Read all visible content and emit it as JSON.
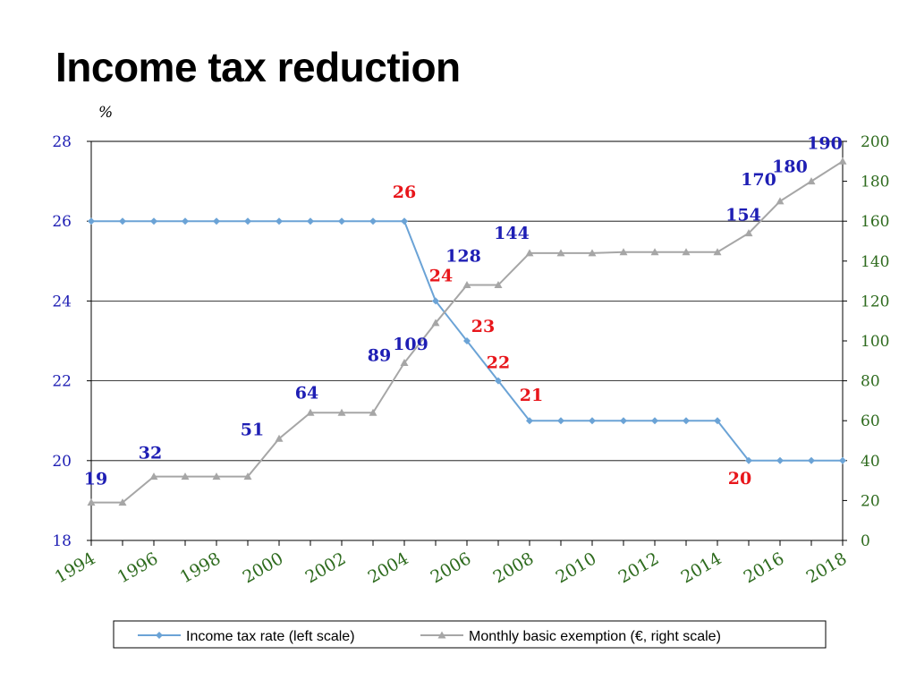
{
  "page": {
    "title": "Income tax reduction"
  },
  "chart_data": {
    "type": "line",
    "title": "Income tax reduction",
    "left_axis_label": "%",
    "x": [
      1994,
      1995,
      1996,
      1997,
      1998,
      1999,
      2000,
      2001,
      2002,
      2003,
      2004,
      2005,
      2006,
      2007,
      2008,
      2009,
      2010,
      2011,
      2012,
      2013,
      2014,
      2015,
      2016,
      2017,
      2018
    ],
    "x_tick_labels": [
      "1994",
      "1996",
      "1998",
      "2000",
      "2002",
      "2004",
      "2006",
      "2008",
      "2010",
      "2012",
      "2014",
      "2016",
      "2018"
    ],
    "left_axis": {
      "ylim": [
        18,
        28
      ],
      "ticks": [
        "18",
        "20",
        "22",
        "24",
        "26",
        "28"
      ],
      "gridlines": [
        20,
        22,
        24,
        26
      ]
    },
    "right_axis": {
      "ylim": [
        0,
        200
      ],
      "ticks": [
        "0",
        "20",
        "40",
        "60",
        "80",
        "100",
        "120",
        "140",
        "160",
        "180",
        "200"
      ]
    },
    "series": [
      {
        "name": "Income tax rate (left scale)",
        "axis": "left",
        "color": "#6BA3D6",
        "marker": "diamond",
        "values": [
          26,
          26,
          26,
          26,
          26,
          26,
          26,
          26,
          26,
          26,
          26,
          24,
          23,
          22,
          21,
          21,
          21,
          21,
          21,
          21,
          21,
          20,
          20,
          20,
          20
        ],
        "data_labels": [
          {
            "x": 2004,
            "text": "26"
          },
          {
            "x": 2005,
            "text": "24"
          },
          {
            "x": 2006,
            "text": "23"
          },
          {
            "x": 2007,
            "text": "22"
          },
          {
            "x": 2008,
            "text": "21"
          },
          {
            "x": 2015,
            "text": "20"
          }
        ],
        "label_color": "#E8161B"
      },
      {
        "name": "Monthly basic exemption (€, right scale)",
        "axis": "right",
        "color": "#A6A6A6",
        "marker": "triangle",
        "values": [
          19,
          19,
          32,
          32,
          32,
          32,
          51,
          64,
          64,
          64,
          89,
          109,
          128,
          128,
          144,
          144,
          144,
          144.5,
          144.5,
          144.5,
          144.5,
          154,
          170,
          180,
          190
        ],
        "data_labels": [
          {
            "x": 1994,
            "text": "19"
          },
          {
            "x": 1996,
            "text": "32"
          },
          {
            "x": 2000,
            "text": "51"
          },
          {
            "x": 2001,
            "text": "64"
          },
          {
            "x": 2004,
            "text": "89"
          },
          {
            "x": 2005,
            "text": "109"
          },
          {
            "x": 2006,
            "text": "128"
          },
          {
            "x": 2008,
            "text": "144"
          },
          {
            "x": 2015,
            "text": "154"
          },
          {
            "x": 2016,
            "text": "170"
          },
          {
            "x": 2017,
            "text": "180"
          },
          {
            "x": 2018,
            "text": "190"
          }
        ],
        "label_color": "#1E1EB4"
      }
    ],
    "legend": {
      "position": "bottom",
      "entries": [
        "Income tax rate (left scale)",
        "Monthly basic exemption (€, right scale)"
      ]
    },
    "colors": {
      "left_tick": "#1E1EB4",
      "right_tick": "#2E6B1E",
      "x_tick": "#2E6B1E"
    }
  }
}
